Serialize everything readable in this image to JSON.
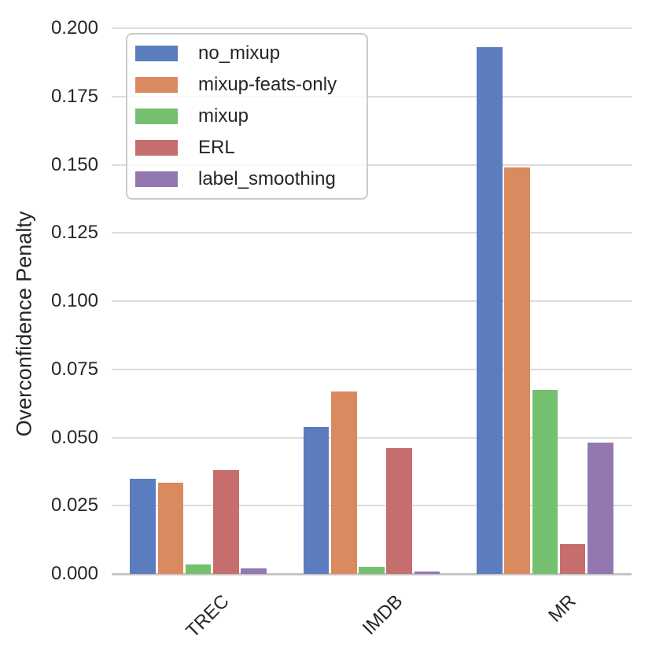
{
  "figure": {
    "background": "#ffffff",
    "text_color": "#262626",
    "grid_color": "#dcdcdc",
    "axis_line_color": "#c6c6c6",
    "legend_border_color": "#cccccc"
  },
  "chart_data": {
    "type": "bar",
    "title": "",
    "xlabel": "",
    "ylabel": "Overconfidence Penalty",
    "categories": [
      "TREC",
      "IMDB",
      "MR"
    ],
    "series": [
      {
        "name": "no_mixup",
        "color": "#5b7cbe",
        "values": [
          0.035,
          0.054,
          0.193
        ]
      },
      {
        "name": "mixup-feats-only",
        "color": "#da8a5f",
        "values": [
          0.0335,
          0.067,
          0.149
        ]
      },
      {
        "name": "mixup",
        "color": "#74c06f",
        "values": [
          0.0035,
          0.0025,
          0.0675
        ]
      },
      {
        "name": "ERL",
        "color": "#c66e6e",
        "values": [
          0.038,
          0.046,
          0.011
        ]
      },
      {
        "name": "label_smoothing",
        "color": "#9377b0",
        "values": [
          0.002,
          0.001,
          0.048
        ]
      }
    ],
    "ylim": [
      0,
      0.2
    ],
    "yticks": {
      "values": [
        0,
        0.025,
        0.05,
        0.075,
        0.1,
        0.125,
        0.15,
        0.175,
        0.2
      ],
      "labels": [
        "0.000",
        "0.025",
        "0.050",
        "0.075",
        "0.100",
        "0.125",
        "0.150",
        "0.175",
        "0.200"
      ]
    },
    "grid": true,
    "legend_position": "upper left",
    "xtick_rotation_deg": 45
  }
}
